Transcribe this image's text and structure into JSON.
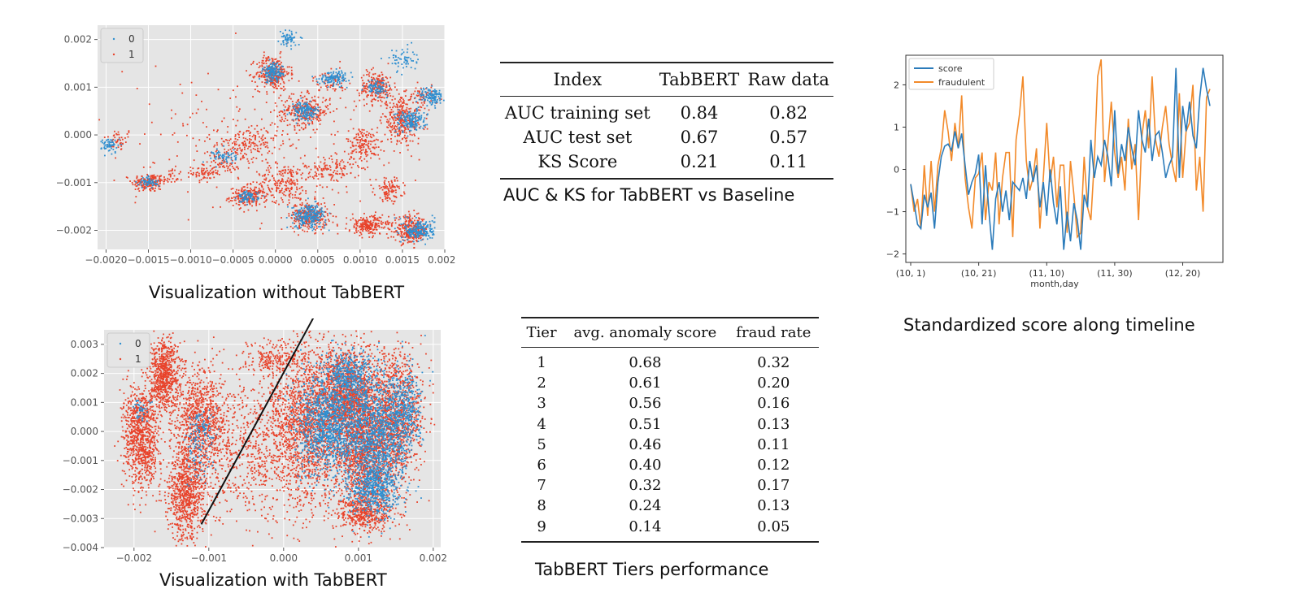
{
  "colors": {
    "class0": "#2f8fd0",
    "class1": "#e8432b",
    "score": "#2b7bba",
    "fraudulent": "#f28a2a",
    "plot_bg": "#e5e5e5"
  },
  "chart_data": [
    {
      "type": "scatter",
      "title": "Visualization without TabBERT",
      "xlim": [
        -0.0021,
        0.002
      ],
      "ylim": [
        -0.0024,
        0.0023
      ],
      "x_ticks": [
        "−0.0020",
        "−0.0015",
        "−0.0010",
        "−0.0005",
        "0.0000",
        "0.0005",
        "0.0010",
        "0.0015",
        "0.0020"
      ],
      "x_tick_values": [
        -0.002,
        -0.0015,
        -0.001,
        -0.0005,
        0,
        0.0005,
        0.001,
        0.0015,
        0.002
      ],
      "y_ticks": [
        "0.002",
        "0.001",
        "0.000",
        "−0.001",
        "−0.002"
      ],
      "y_tick_values": [
        0.002,
        0.001,
        0,
        -0.001,
        -0.002
      ],
      "legend": [
        "0",
        "1"
      ],
      "legend_position": "top-left",
      "clusters": [
        [
          -0.00185,
          -0.0001,
          9e-05,
          0.00012,
          40,
          1
        ],
        [
          -0.00195,
          -0.00022,
          5e-05,
          8e-05,
          60,
          0
        ],
        [
          -0.0015,
          -0.001,
          0.0001,
          0.0001,
          150,
          1
        ],
        [
          -0.0015,
          -0.001,
          6e-05,
          6e-05,
          60,
          0
        ],
        [
          -0.00125,
          -0.0009,
          8e-05,
          0.0001,
          40,
          1
        ],
        [
          -0.00085,
          -0.0008,
          7e-05,
          0.0001,
          70,
          1
        ],
        [
          -0.0006,
          -0.00045,
          7e-05,
          8e-05,
          60,
          0
        ],
        [
          -0.0006,
          -0.0006,
          8e-05,
          0.0001,
          60,
          1
        ],
        [
          -0.00032,
          -0.0013,
          0.00011,
          0.0001,
          200,
          1
        ],
        [
          -0.00032,
          -0.0013,
          6e-05,
          6e-05,
          80,
          0
        ],
        [
          -0.00035,
          -0.0002,
          0.00018,
          0.00018,
          170,
          1
        ],
        [
          -3e-05,
          0.0013,
          0.0001,
          0.00018,
          280,
          1
        ],
        [
          -3e-05,
          0.0013,
          6e-05,
          0.0001,
          140,
          0
        ],
        [
          0.0001,
          -0.001,
          0.00016,
          0.0002,
          200,
          1
        ],
        [
          0.00015,
          0.002,
          5e-05,
          8e-05,
          60,
          0
        ],
        [
          0.00035,
          0.0005,
          0.00015,
          0.00017,
          280,
          1
        ],
        [
          0.00035,
          0.0005,
          8e-05,
          0.0001,
          140,
          0
        ],
        [
          0.0004,
          -0.0017,
          0.00011,
          0.00015,
          260,
          1
        ],
        [
          0.0004,
          -0.0017,
          0.0001,
          0.00012,
          220,
          0
        ],
        [
          0.0007,
          0.0012,
          9e-05,
          7e-05,
          120,
          0
        ],
        [
          0.00065,
          0.0011,
          0.0001,
          0.0001,
          60,
          1
        ],
        [
          0.00065,
          -0.00075,
          0.00015,
          0.00017,
          130,
          1
        ],
        [
          0.00105,
          -0.0002,
          0.0001,
          0.00018,
          150,
          1
        ],
        [
          0.0012,
          0.001,
          0.0001,
          0.00017,
          220,
          1
        ],
        [
          0.0012,
          0.001,
          6e-05,
          8e-05,
          80,
          0
        ],
        [
          0.0011,
          -0.0019,
          0.00012,
          0.0001,
          220,
          1
        ],
        [
          0.00135,
          -0.00115,
          8e-05,
          0.00012,
          100,
          1
        ],
        [
          0.0015,
          0.0003,
          0.00012,
          0.00024,
          300,
          1
        ],
        [
          0.0016,
          0.0003,
          9e-05,
          0.00012,
          160,
          0
        ],
        [
          0.0015,
          0.0016,
          8e-05,
          0.00012,
          60,
          0
        ],
        [
          0.0016,
          -0.002,
          0.0001,
          0.00014,
          280,
          1
        ],
        [
          0.0017,
          -0.002,
          9e-05,
          0.00012,
          200,
          0
        ],
        [
          0.00185,
          0.0008,
          7e-05,
          0.0001,
          120,
          0
        ],
        [
          0.00175,
          0.0008,
          8e-05,
          0.0001,
          60,
          1
        ],
        [
          -0.0002,
          0.0,
          0.0009,
          0.0008,
          220,
          1
        ]
      ]
    },
    {
      "type": "scatter",
      "title": "Visualization with TabBERT",
      "xlim": [
        -0.0024,
        0.0021
      ],
      "ylim": [
        -0.004,
        0.0035
      ],
      "x_ticks": [
        "−0.002",
        "−0.001",
        "0.000",
        "0.001",
        "0.002"
      ],
      "x_tick_values": [
        -0.002,
        -0.001,
        0,
        0.001,
        0.002
      ],
      "y_ticks": [
        "0.003",
        "0.002",
        "0.001",
        "0.000",
        "−0.001",
        "−0.002",
        "−0.003",
        "−0.004"
      ],
      "y_tick_values": [
        0.003,
        0.002,
        0.001,
        0,
        -0.001,
        -0.002,
        -0.003,
        -0.004
      ],
      "legend": [
        "0",
        "1"
      ],
      "legend_position": "top-left",
      "separator": [
        [
          -0.0011,
          -0.0032
        ],
        [
          0.0005,
          0.0044
        ]
      ],
      "clusters": [
        [
          -0.0016,
          0.002,
          0.0001,
          0.0006,
          700,
          1
        ],
        [
          -0.0019,
          -0.0002,
          0.00012,
          0.0009,
          900,
          1
        ],
        [
          -0.0019,
          0.0008,
          6e-05,
          0.0002,
          40,
          0
        ],
        [
          -0.0011,
          0.0004,
          0.00018,
          0.0009,
          900,
          1
        ],
        [
          -0.0013,
          -0.0022,
          0.00013,
          0.0008,
          800,
          1
        ],
        [
          -0.00115,
          -0.0008,
          0.0001,
          0.0005,
          80,
          0
        ],
        [
          -0.0011,
          0.0002,
          0.0001,
          0.0003,
          70,
          0
        ],
        [
          -0.0005,
          -0.0007,
          0.0003,
          0.0012,
          500,
          1
        ],
        [
          -0.0001,
          0.0025,
          0.0002,
          0.0003,
          200,
          1
        ],
        [
          0.0003,
          0.0002,
          0.00028,
          0.0014,
          1700,
          1
        ],
        [
          0.00085,
          0.0013,
          0.0002,
          0.0008,
          1300,
          1
        ],
        [
          0.0011,
          -0.0008,
          0.00022,
          0.0011,
          1400,
          1
        ],
        [
          0.0011,
          -0.0028,
          0.0002,
          0.0003,
          400,
          1
        ],
        [
          0.0015,
          0.0006,
          0.00018,
          0.0011,
          1000,
          1
        ],
        [
          0.0006,
          0.0003,
          0.00022,
          0.0009,
          1100,
          0
        ],
        [
          0.0012,
          -0.0002,
          0.00022,
          0.0011,
          1200,
          0
        ],
        [
          0.0009,
          0.0018,
          0.00015,
          0.0005,
          400,
          0
        ],
        [
          0.0012,
          -0.0021,
          0.00015,
          0.0004,
          400,
          0
        ],
        [
          0.0016,
          0.0006,
          0.00012,
          0.0008,
          400,
          0
        ]
      ]
    },
    {
      "type": "line",
      "title": "Standardized score along timeline",
      "xlabel": "month,day",
      "x_ticks": [
        "(10, 1)",
        "(10, 21)",
        "(11, 10)",
        "(11, 30)",
        "(12, 20)"
      ],
      "x_tick_index": [
        0,
        20,
        40,
        60,
        80
      ],
      "ylim": [
        -2.2,
        2.7
      ],
      "y_ticks": [
        "2",
        "1",
        "0",
        "−1",
        "−2"
      ],
      "y_tick_values": [
        2,
        1,
        0,
        -1,
        -2
      ],
      "legend_position": "top-left",
      "series": [
        {
          "name": "score",
          "values": [
            -0.35,
            -0.8,
            -1.3,
            -1.4,
            -0.6,
            -0.9,
            -0.55,
            -1.4,
            -0.3,
            0.3,
            0.55,
            0.6,
            0.45,
            0.9,
            0.5,
            0.85,
            0.1,
            -0.6,
            -0.3,
            -0.1,
            0.35,
            -1.3,
            0.1,
            -1.0,
            -1.9,
            -0.7,
            -0.3,
            -1.0,
            -0.5,
            -1.2,
            -0.3,
            -0.4,
            -0.5,
            -0.2,
            -0.7,
            0.2,
            -0.3,
            0.1,
            -0.9,
            -0.3,
            -1.1,
            0.0,
            -0.8,
            -1.3,
            -0.4,
            -1.9,
            -1.0,
            -1.7,
            -0.8,
            -1.2,
            -1.9,
            -0.6,
            -0.9,
            0.7,
            -0.2,
            0.3,
            0.1,
            0.7,
            0.3,
            -0.4,
            1.4,
            -0.1,
            0.6,
            0.2,
            1.0,
            0.5,
            0.1,
            1.4,
            0.7,
            0.4,
            1.2,
            0.2,
            0.8,
            0.9,
            0.4,
            -0.2,
            0.1,
            0.3,
            2.4,
            -0.2,
            1.5,
            0.9,
            1.6,
            0.8,
            0.5,
            1.7,
            2.4,
            1.9,
            1.5
          ]
        },
        {
          "name": "fraudulent",
          "values": [
            -0.35,
            -1.0,
            -0.7,
            -1.4,
            0.1,
            -1.1,
            0.2,
            -1.0,
            0.1,
            0.5,
            1.4,
            0.9,
            0.2,
            1.1,
            0.5,
            1.75,
            -0.2,
            -0.9,
            -1.4,
            -0.2,
            -0.1,
            0.4,
            -1.2,
            -0.3,
            -0.5,
            0.4,
            -1.3,
            -0.2,
            0.4,
            0.4,
            -1.6,
            0.7,
            1.3,
            2.2,
            0.2,
            -0.5,
            -0.2,
            0.5,
            -1.4,
            -0.2,
            1.1,
            -0.3,
            0.3,
            -0.9,
            0.1,
            0.1,
            -1.5,
            0.2,
            -0.6,
            -1.6,
            -1.5,
            0.3,
            -0.9,
            -1.2,
            0.2,
            2.2,
            2.6,
            -0.3,
            0.6,
            1.6,
            0.4,
            -0.2,
            0.3,
            -0.5,
            1.2,
            0.0,
            0.6,
            -1.2,
            0.8,
            1.4,
            0.5,
            2.2,
            0.7,
            0.3,
            1.0,
            1.5,
            0.6,
            0.1,
            -0.3,
            1.8,
            -0.2,
            0.9,
            1.1,
            2.0,
            -0.5,
            0.3,
            -1.0,
            1.7,
            1.9
          ]
        }
      ]
    }
  ],
  "captions": {
    "scatter_without": "Visualization without TabBERT",
    "scatter_with": "Visualization with TabBERT",
    "table1": "AUC & KS for TabBERT vs Baseline",
    "table2": "TabBERT Tiers performance",
    "timeline": "Standardized score along timeline"
  },
  "table1": {
    "headers": [
      "Index",
      "TabBERT",
      "Raw data"
    ],
    "rows": [
      [
        "AUC training set",
        "0.84",
        "0.82"
      ],
      [
        "AUC test set",
        "0.67",
        "0.57"
      ],
      [
        "KS Score",
        "0.21",
        "0.11"
      ]
    ]
  },
  "table2": {
    "headers": [
      "Tier",
      "avg. anomaly score",
      "fraud rate"
    ],
    "rows": [
      [
        "1",
        "0.68",
        "0.32"
      ],
      [
        "2",
        "0.61",
        "0.20"
      ],
      [
        "3",
        "0.56",
        "0.16"
      ],
      [
        "4",
        "0.51",
        "0.13"
      ],
      [
        "5",
        "0.46",
        "0.11"
      ],
      [
        "6",
        "0.40",
        "0.12"
      ],
      [
        "7",
        "0.32",
        "0.17"
      ],
      [
        "8",
        "0.24",
        "0.13"
      ],
      [
        "9",
        "0.14",
        "0.05"
      ]
    ]
  }
}
